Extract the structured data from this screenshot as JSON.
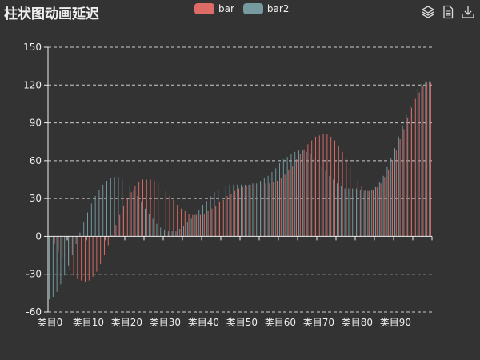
{
  "title": "柱状图动画延迟",
  "legend": [
    {
      "name": "bar",
      "color": "#dd6b66"
    },
    {
      "name": "bar2",
      "color": "#759aa0"
    }
  ],
  "toolbox": [
    {
      "name": "layers-icon"
    },
    {
      "name": "data-view-icon"
    },
    {
      "name": "download-icon"
    }
  ],
  "colors": {
    "background": "#333333",
    "text": "#eeeeee",
    "grid": "#cccccc",
    "bar": "#dd6b66",
    "bar2": "#759aa0"
  },
  "chart_data": {
    "type": "bar",
    "title": "柱状图动画延迟",
    "categories_count": 100,
    "category_label_prefix": "类目",
    "x_tick_labels": [
      "类目0",
      "类目10",
      "类目20",
      "类目30",
      "类目40",
      "类目50",
      "类目60",
      "类目70",
      "类目80",
      "类目90"
    ],
    "ylim": [
      -60,
      150
    ],
    "y_ticks": [
      -60,
      -30,
      0,
      30,
      60,
      90,
      120,
      150
    ],
    "grid": "dashed horizontal",
    "legend_position": "top-center",
    "series": [
      {
        "name": "bar",
        "values": [
          0,
          -6,
          -12,
          -17,
          -23,
          -27,
          -31,
          -34,
          -35,
          -36,
          -35,
          -32,
          -28,
          -22,
          -15,
          -7,
          1,
          9,
          17,
          24,
          30,
          35,
          40,
          43,
          45,
          45,
          45,
          44,
          42,
          39,
          36,
          32,
          29,
          25,
          22,
          20,
          18,
          17,
          17,
          17,
          18,
          20,
          22,
          24,
          27,
          29,
          32,
          34,
          36,
          38,
          39,
          40,
          41,
          41,
          42,
          42,
          42,
          42,
          43,
          44,
          46,
          49,
          53,
          56,
          61,
          65,
          69,
          73,
          76,
          79,
          80,
          81,
          81,
          79,
          76,
          72,
          67,
          61,
          55,
          49,
          44,
          40,
          37,
          36,
          37,
          39,
          42,
          47,
          53,
          60,
          68,
          77,
          85,
          94,
          102,
          109,
          114,
          119,
          122,
          122
        ]
      },
      {
        "name": "bar2",
        "values": [
          -50,
          -48,
          -44,
          -38,
          -31,
          -23,
          -15,
          -6,
          3,
          11,
          19,
          26,
          32,
          37,
          41,
          44,
          46,
          47,
          47,
          45,
          43,
          40,
          36,
          32,
          27,
          22,
          18,
          14,
          10,
          7,
          5,
          4,
          4,
          4,
          6,
          8,
          11,
          14,
          17,
          21,
          25,
          28,
          32,
          35,
          37,
          39,
          40,
          41,
          41,
          41,
          41,
          41,
          41,
          42,
          42,
          44,
          46,
          48,
          51,
          54,
          58,
          61,
          63,
          65,
          67,
          68,
          68,
          67,
          65,
          62,
          59,
          55,
          52,
          48,
          45,
          42,
          40,
          38,
          38,
          38,
          38,
          37,
          36,
          36,
          37,
          39,
          43,
          48,
          55,
          62,
          70,
          79,
          88,
          96,
          104,
          111,
          117,
          121,
          123,
          123
        ]
      }
    ]
  }
}
